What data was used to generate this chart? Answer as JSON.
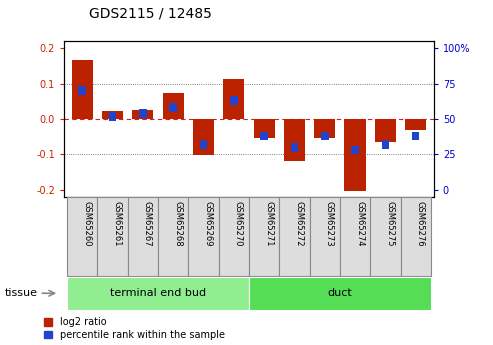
{
  "title": "GDS2115 / 12485",
  "samples": [
    "GSM65260",
    "GSM65261",
    "GSM65267",
    "GSM65268",
    "GSM65269",
    "GSM65270",
    "GSM65271",
    "GSM65272",
    "GSM65273",
    "GSM65274",
    "GSM65275",
    "GSM65276"
  ],
  "log2_ratio": [
    0.168,
    0.022,
    0.025,
    0.075,
    -0.102,
    0.113,
    -0.055,
    -0.12,
    -0.055,
    -0.205,
    -0.065,
    -0.03
  ],
  "percentile_rank": [
    70,
    52,
    54,
    58,
    32,
    63,
    38,
    30,
    38,
    28,
    32,
    38
  ],
  "tissue_groups": [
    {
      "label": "terminal end bud",
      "start": 0,
      "end": 6,
      "color": "#90EE90"
    },
    {
      "label": "duct",
      "start": 6,
      "end": 12,
      "color": "#55DD55"
    }
  ],
  "ylim": [
    -0.22,
    0.22
  ],
  "yticks_left": [
    -0.2,
    -0.1,
    0.0,
    0.1,
    0.2
  ],
  "yticks_right": [
    0,
    25,
    50,
    75,
    100
  ],
  "bar_color_red": "#BB2200",
  "bar_color_blue": "#2244CC",
  "zero_line_color": "#CC2222",
  "grid_color": "#555555",
  "bg_color": "#FFFFFF",
  "plot_bg_color": "#FFFFFF",
  "label_color_left": "#CC2200",
  "label_color_right": "#0000CC",
  "tissue_label": "tissue",
  "legend_red": "log2 ratio",
  "legend_blue": "percentile rank within the sample",
  "sample_cell_color": "#DDDDDD",
  "sample_cell_edge": "#888888"
}
